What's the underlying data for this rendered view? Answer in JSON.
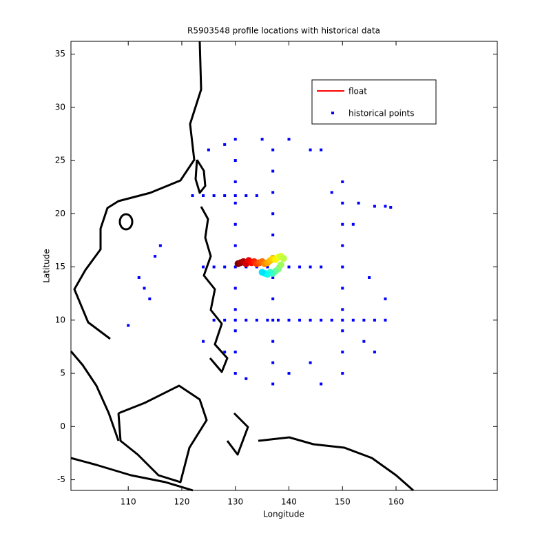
{
  "chart_data": {
    "type": "scatter",
    "title": "R5903548 profile locations with historical data",
    "xlabel": "Longitude",
    "ylabel": "Latitude",
    "xlim": [
      99.3,
      178.9
    ],
    "ylim": [
      -6.0,
      36.2
    ],
    "xticks": [
      110,
      120,
      130,
      140,
      150,
      160
    ],
    "yticks": [
      -5,
      0,
      5,
      10,
      15,
      20,
      25,
      30,
      35
    ],
    "legend": "upper right",
    "series": [
      {
        "name": "float",
        "color": "#ff0000",
        "colormap": "jet",
        "x": [
          130.5,
          131,
          131.5,
          132,
          132.5,
          133,
          133.5,
          134,
          134.5,
          135,
          135.5,
          136,
          136.5,
          137,
          137.5,
          138,
          138.5,
          139,
          138.5,
          138,
          137.5,
          137,
          136.5,
          136,
          135.5,
          135
        ],
        "y": [
          15.3,
          15.4,
          15.5,
          15.3,
          15.6,
          15.4,
          15.5,
          15.3,
          15.4,
          15.5,
          15.3,
          15.4,
          15.6,
          15.8,
          15.7,
          15.9,
          16.0,
          15.8,
          15.2,
          14.8,
          14.6,
          14.4,
          14.5,
          14.3,
          14.4,
          14.5
        ]
      },
      {
        "name": "historical points",
        "color": "#0000ff",
        "x": [
          124,
          126,
          128,
          130,
          132,
          134,
          136,
          138,
          140,
          142,
          144,
          146,
          126,
          128,
          130,
          132,
          134,
          136,
          138,
          140,
          142,
          144,
          146,
          148,
          150,
          152,
          154,
          156,
          158,
          122,
          124,
          126,
          128,
          130,
          132,
          134,
          137,
          137,
          137,
          137,
          137,
          137,
          137,
          137,
          137,
          137,
          137,
          137,
          130,
          130,
          130,
          130,
          130,
          130,
          130,
          130,
          130,
          130,
          130,
          150,
          150,
          150,
          150,
          150,
          150,
          150,
          150,
          150,
          150,
          112,
          113,
          114,
          115,
          116,
          110,
          156,
          158,
          159,
          153,
          144,
          146,
          140,
          135,
          128,
          125,
          154,
          155,
          152,
          148,
          144,
          140,
          128,
          124,
          132,
          146,
          156,
          158
        ],
        "y": [
          15,
          15,
          15,
          15,
          15,
          15,
          15,
          15,
          15,
          15,
          15,
          15,
          10,
          10,
          10,
          10,
          10,
          10,
          10,
          10,
          10,
          10,
          10,
          10,
          10,
          10,
          10,
          10,
          10,
          21.7,
          21.7,
          21.7,
          21.7,
          21.7,
          21.7,
          21.7,
          4,
          6,
          8,
          10,
          12,
          14,
          16,
          18,
          20,
          22,
          24,
          26,
          5,
          7,
          9,
          11,
          13,
          17,
          19,
          21,
          23,
          25,
          27,
          5,
          7,
          9,
          11,
          13,
          15,
          17,
          19,
          21,
          23,
          14,
          13,
          12,
          16,
          17,
          9.5,
          20.7,
          20.7,
          20.6,
          21,
          26,
          26,
          27,
          27,
          26.5,
          26,
          8,
          14,
          19,
          22,
          6,
          5,
          7,
          8,
          4.5,
          4,
          7,
          12
        ]
      }
    ]
  }
}
